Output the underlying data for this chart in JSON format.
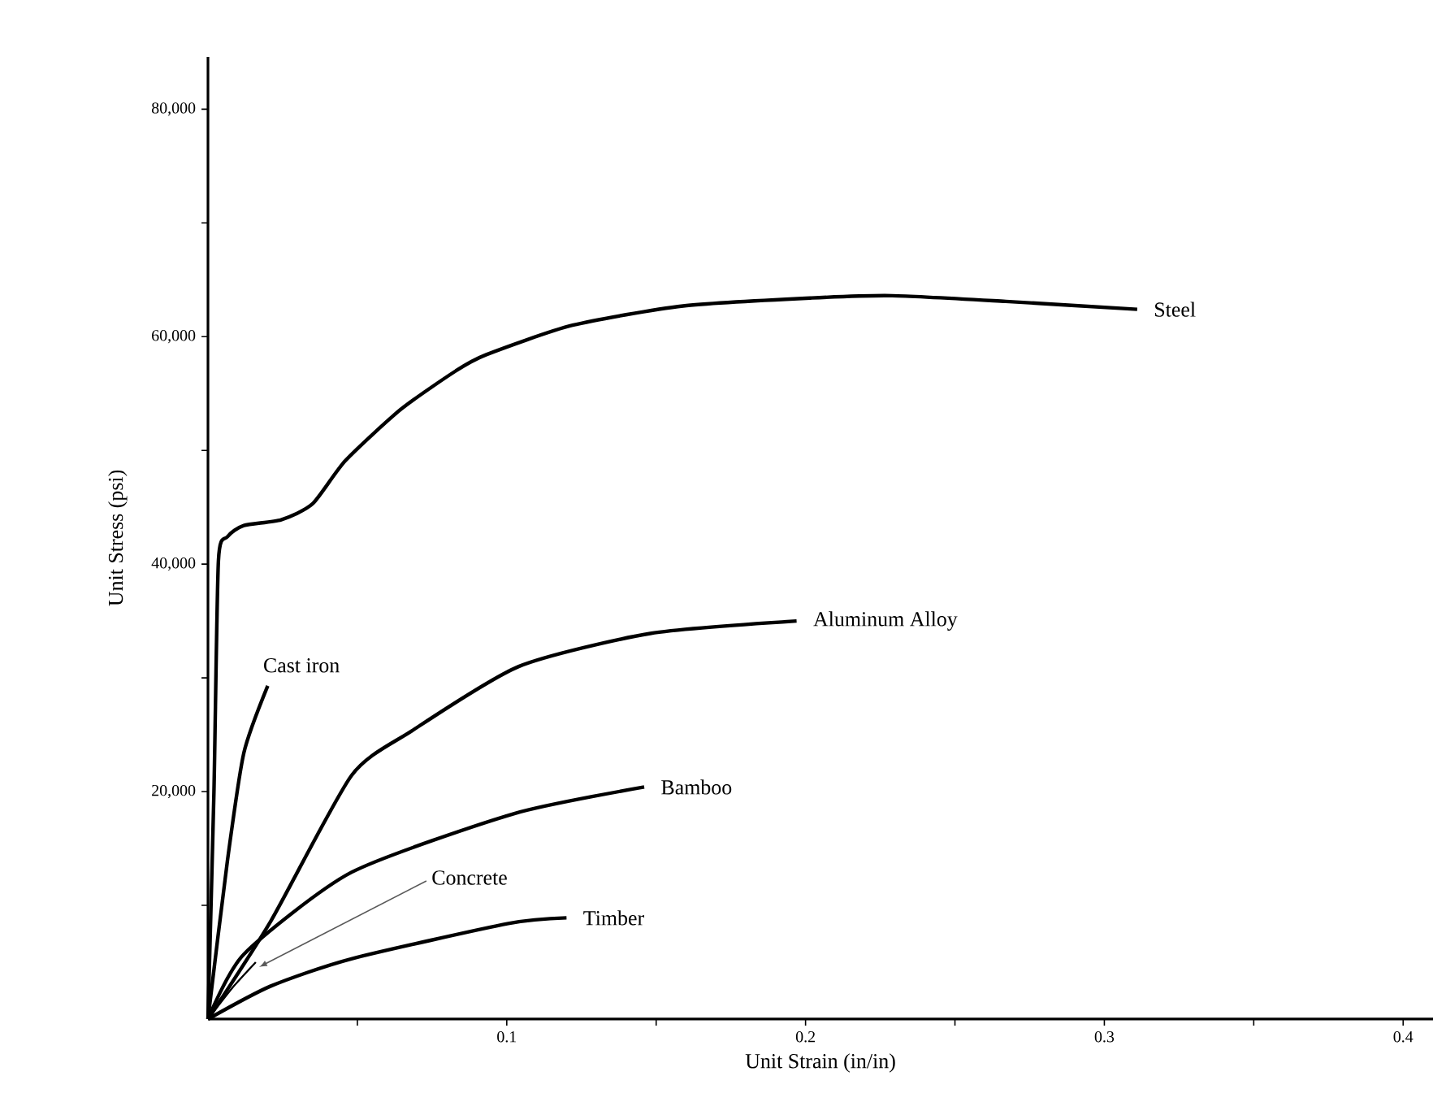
{
  "chart_data": {
    "type": "line",
    "xlabel": "Unit Strain (in/in)",
    "ylabel": "Unit Stress (psi)",
    "xlim": [
      0,
      0.41
    ],
    "ylim": [
      0,
      84600
    ],
    "xticks": [
      {
        "value": 0.05,
        "label": null
      },
      0.1,
      {
        "value": 0.15,
        "label": null
      },
      0.2,
      {
        "value": 0.25,
        "label": null
      },
      0.3,
      {
        "value": 0.35,
        "label": null
      },
      0.4
    ],
    "yticks": [
      {
        "value": 10000,
        "label": null
      },
      {
        "value": 20000,
        "label": "20,000"
      },
      {
        "value": 30000,
        "label": null
      },
      {
        "value": 40000,
        "label": "40,000"
      },
      {
        "value": 50000,
        "label": null
      },
      {
        "value": 60000,
        "label": "60,000"
      },
      {
        "value": 70000,
        "label": null
      },
      {
        "value": 80000,
        "label": "80,000"
      }
    ],
    "grid": false,
    "marker": "none",
    "line_style": "solid",
    "series": [
      {
        "name": "Steel",
        "color": "#000000",
        "x": [
          0,
          0.002,
          0.0035,
          0.0065,
          0.012,
          0.0245,
          0.035,
          0.046,
          0.0645,
          0.083,
          0.093,
          0.122,
          0.159,
          0.202,
          0.229,
          0.267,
          0.311
        ],
        "values": [
          0,
          20000,
          40300,
          42400,
          43400,
          43900,
          45300,
          49100,
          53600,
          57000,
          58400,
          61000,
          62700,
          63400,
          63600,
          63100,
          62400
        ]
      },
      {
        "name": "Cast iron",
        "color": "#000000",
        "x": [
          0,
          0.0065,
          0.012,
          0.02
        ],
        "values": [
          0,
          13900,
          23400,
          29300
        ]
      },
      {
        "name": "Aluminum Alloy",
        "color": "#000000",
        "x": [
          0,
          0.021,
          0.048,
          0.068,
          0.104,
          0.148,
          0.197
        ],
        "values": [
          0,
          8600,
          21400,
          25300,
          31000,
          33900,
          35000
        ]
      },
      {
        "name": "Bamboo",
        "color": "#000000",
        "x": [
          0,
          0.012,
          0.048,
          0.103,
          0.146
        ],
        "values": [
          0,
          5700,
          12900,
          18100,
          20400
        ]
      },
      {
        "color": "#000000",
        "x": [
          0,
          0.008,
          0.016
        ],
        "values": [
          0,
          2700,
          5000
        ]
      },
      {
        "name": "Timber",
        "color": "#000000",
        "x": [
          0,
          0.021,
          0.048,
          0.1005,
          0.12
        ],
        "values": [
          0,
          2900,
          5300,
          8400,
          8900
        ]
      }
    ],
    "annotations": [
      {
        "text": "Concrete",
        "x": 0.016,
        "y": 5000
      }
    ]
  }
}
